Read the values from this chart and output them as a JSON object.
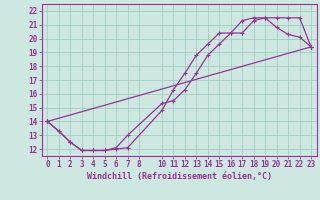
{
  "xlabel": "Windchill (Refroidissement éolien,°C)",
  "bg_color": "#cce8e0",
  "grid_color": "#99ccbb",
  "line_color": "#993399",
  "spine_color": "#993399",
  "xlim": [
    -0.5,
    23.5
  ],
  "ylim": [
    11.5,
    22.5
  ],
  "xticks": [
    0,
    1,
    2,
    3,
    4,
    5,
    6,
    7,
    8,
    10,
    11,
    12,
    13,
    14,
    15,
    16,
    17,
    18,
    19,
    20,
    21,
    22,
    23
  ],
  "yticks": [
    12,
    13,
    14,
    15,
    16,
    17,
    18,
    19,
    20,
    21,
    22
  ],
  "line1_x": [
    0,
    1,
    2,
    3,
    4,
    5,
    6,
    7,
    10,
    11,
    12,
    13,
    14,
    15,
    16,
    17,
    18,
    19,
    20,
    21,
    22,
    23
  ],
  "line1_y": [
    14.0,
    13.3,
    12.5,
    11.9,
    11.9,
    11.9,
    12.1,
    13.0,
    15.3,
    15.5,
    16.3,
    17.5,
    18.8,
    19.6,
    20.4,
    20.4,
    21.3,
    21.5,
    20.8,
    20.3,
    20.1,
    19.4
  ],
  "line2_x": [
    0,
    1,
    2,
    3,
    4,
    5,
    6,
    7,
    10,
    11,
    12,
    13,
    14,
    15,
    16,
    17,
    18,
    19,
    20,
    21,
    22,
    23
  ],
  "line2_y": [
    14.0,
    13.3,
    12.5,
    11.9,
    11.9,
    11.9,
    12.0,
    12.1,
    14.8,
    16.3,
    17.5,
    18.8,
    19.6,
    20.4,
    20.4,
    21.3,
    21.5,
    21.5,
    21.5,
    21.5,
    21.5,
    19.4
  ],
  "line3_x": [
    0,
    23
  ],
  "line3_y": [
    14.0,
    19.4
  ],
  "tick_fontsize": 5.5,
  "xlabel_fontsize": 6.0
}
